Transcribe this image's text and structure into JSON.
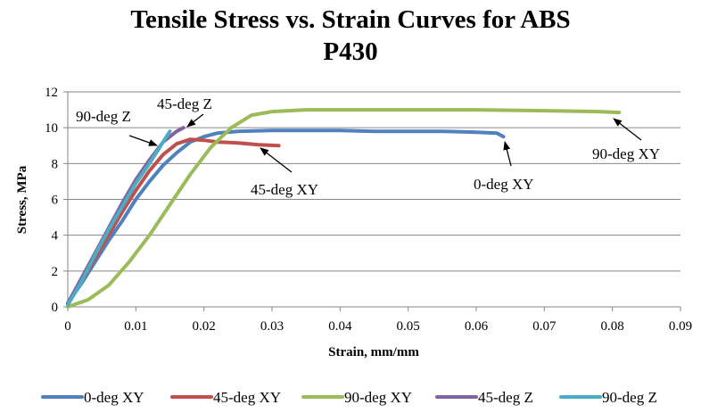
{
  "chart_data": {
    "type": "line",
    "title_line1": "Tensile Stress vs. Strain Curves for ABS",
    "title_line2": "P430",
    "xlabel": "Strain, mm/mm",
    "ylabel": "Stress, MPa",
    "xlim": [
      0,
      0.09
    ],
    "ylim": [
      0,
      12
    ],
    "xticks": [
      0,
      0.01,
      0.02,
      0.03,
      0.04,
      0.05,
      0.06,
      0.07,
      0.08,
      0.09
    ],
    "yticks": [
      0,
      2,
      4,
      6,
      8,
      10,
      12
    ],
    "grid": "horizontal",
    "legend_position": "bottom",
    "series": [
      {
        "name": "0-deg XY",
        "color": "#4F81BD",
        "x": [
          0,
          0.002,
          0.004,
          0.006,
          0.008,
          0.01,
          0.012,
          0.014,
          0.016,
          0.018,
          0.02,
          0.022,
          0.025,
          0.03,
          0.035,
          0.04,
          0.045,
          0.05,
          0.055,
          0.06,
          0.063,
          0.064
        ],
        "y": [
          0.2,
          1.3,
          2.5,
          3.7,
          4.8,
          6.0,
          7.0,
          7.9,
          8.6,
          9.2,
          9.5,
          9.7,
          9.8,
          9.85,
          9.85,
          9.85,
          9.8,
          9.8,
          9.8,
          9.75,
          9.7,
          9.5
        ]
      },
      {
        "name": "45-deg XY",
        "color": "#C0504D",
        "x": [
          0,
          0.002,
          0.004,
          0.006,
          0.008,
          0.01,
          0.012,
          0.014,
          0.016,
          0.018,
          0.02,
          0.022,
          0.025,
          0.028,
          0.031
        ],
        "y": [
          0.2,
          1.4,
          2.7,
          4.0,
          5.3,
          6.5,
          7.6,
          8.5,
          9.1,
          9.35,
          9.3,
          9.2,
          9.15,
          9.05,
          9.0
        ]
      },
      {
        "name": "90-deg XY",
        "color": "#9BBB59",
        "x": [
          0,
          0.003,
          0.006,
          0.009,
          0.012,
          0.015,
          0.018,
          0.021,
          0.024,
          0.027,
          0.03,
          0.035,
          0.04,
          0.05,
          0.06,
          0.07,
          0.078,
          0.081
        ],
        "y": [
          0,
          0.4,
          1.2,
          2.5,
          4.0,
          5.7,
          7.4,
          8.9,
          10.0,
          10.7,
          10.9,
          11.0,
          11.0,
          11.0,
          11.0,
          10.95,
          10.9,
          10.85
        ]
      },
      {
        "name": "45-deg Z",
        "color": "#8064A2",
        "x": [
          0,
          0.002,
          0.004,
          0.006,
          0.008,
          0.01,
          0.012,
          0.014,
          0.016,
          0.017
        ],
        "y": [
          0.2,
          1.6,
          3.0,
          4.4,
          5.8,
          7.1,
          8.2,
          9.2,
          9.8,
          10.0
        ]
      },
      {
        "name": "90-deg Z",
        "color": "#4BACC6",
        "x": [
          0,
          0.002,
          0.004,
          0.006,
          0.008,
          0.01,
          0.012,
          0.014,
          0.015
        ],
        "y": [
          0.1,
          1.4,
          2.9,
          4.3,
          5.6,
          6.9,
          8.0,
          9.2,
          9.8
        ]
      }
    ],
    "annotations": [
      {
        "text": "90-deg Z",
        "series": "90-deg Z"
      },
      {
        "text": "45-deg Z",
        "series": "45-deg Z"
      },
      {
        "text": "45-deg XY",
        "series": "45-deg XY"
      },
      {
        "text": "0-deg XY",
        "series": "0-deg XY"
      },
      {
        "text": "90-deg XY",
        "series": "90-deg XY"
      }
    ]
  }
}
